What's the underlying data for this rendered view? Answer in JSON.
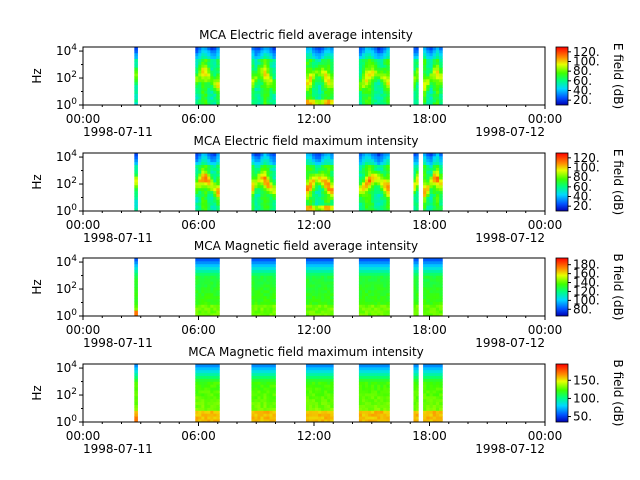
{
  "chart_data": [
    {
      "type": "heatmap",
      "title": "MCA  Electric field average intensity",
      "ylabel": "Hz",
      "colorbar_label": "E field (dB)",
      "colorbar_ticks": [
        "20.",
        "40.",
        "60.",
        "80.",
        "100.",
        "120."
      ],
      "colorbar_range": [
        10,
        130
      ],
      "y_scale": "log",
      "yticks": [
        "10^0",
        "10^2",
        "10^4"
      ],
      "xticks": [
        "00:00",
        "06:00",
        "12:00",
        "18:00",
        "00:00"
      ],
      "xdate_left": "1998-07-11",
      "xdate_right": "1998-07-12",
      "xlim": [
        "1998-07-11 00:00",
        "1998-07-12 00:00"
      ],
      "data_intervals": [
        [
          "02:40",
          "02:50"
        ],
        [
          "05:50",
          "07:05"
        ],
        [
          "08:45",
          "10:00"
        ],
        [
          "11:35",
          "13:00"
        ],
        [
          "14:20",
          "15:55"
        ],
        [
          "17:10",
          "17:25"
        ],
        [
          "17:40",
          "18:40"
        ]
      ],
      "colormap": "rainbow",
      "kind": "E",
      "mode": "avg"
    },
    {
      "type": "heatmap",
      "title": "MCA  Electric field maximum intensity",
      "ylabel": "Hz",
      "colorbar_label": "E field (dB)",
      "colorbar_ticks": [
        "20.",
        "40.",
        "60.",
        "80.",
        "100.",
        "120."
      ],
      "colorbar_range": [
        10,
        130
      ],
      "y_scale": "log",
      "yticks": [
        "10^0",
        "10^2",
        "10^4"
      ],
      "xticks": [
        "00:00",
        "06:00",
        "12:00",
        "18:00",
        "00:00"
      ],
      "xdate_left": "1998-07-11",
      "xdate_right": "1998-07-12",
      "xlim": [
        "1998-07-11 00:00",
        "1998-07-12 00:00"
      ],
      "data_intervals": [
        [
          "02:40",
          "02:50"
        ],
        [
          "05:50",
          "07:05"
        ],
        [
          "08:45",
          "10:00"
        ],
        [
          "11:35",
          "13:00"
        ],
        [
          "14:20",
          "15:55"
        ],
        [
          "17:10",
          "17:25"
        ],
        [
          "17:40",
          "18:40"
        ]
      ],
      "colormap": "rainbow",
      "kind": "E",
      "mode": "max"
    },
    {
      "type": "heatmap",
      "title": "MCA  Magnetic field average intensity",
      "ylabel": "Hz",
      "colorbar_label": "B field (dB)",
      "colorbar_ticks": [
        "80.",
        "100.",
        "120.",
        "140.",
        "160.",
        "180."
      ],
      "colorbar_range": [
        65,
        195
      ],
      "y_scale": "log",
      "yticks": [
        "10^0",
        "10^2",
        "10^4"
      ],
      "xticks": [
        "00:00",
        "06:00",
        "12:00",
        "18:00",
        "00:00"
      ],
      "xdate_left": "1998-07-11",
      "xdate_right": "1998-07-12",
      "xlim": [
        "1998-07-11 00:00",
        "1998-07-12 00:00"
      ],
      "data_intervals": [
        [
          "02:40",
          "02:50"
        ],
        [
          "05:50",
          "07:05"
        ],
        [
          "08:45",
          "10:00"
        ],
        [
          "11:35",
          "13:00"
        ],
        [
          "14:20",
          "15:55"
        ],
        [
          "17:10",
          "17:25"
        ],
        [
          "17:40",
          "18:40"
        ]
      ],
      "colormap": "rainbow",
      "kind": "B",
      "mode": "avg"
    },
    {
      "type": "heatmap",
      "title": "MCA  Magnetic field maximum intensity",
      "ylabel": "Hz",
      "colorbar_label": "B field (dB)",
      "colorbar_ticks": [
        "50.",
        "100.",
        "150."
      ],
      "colorbar_range": [
        35,
        195
      ],
      "y_scale": "log",
      "yticks": [
        "10^0",
        "10^2",
        "10^4"
      ],
      "xticks": [
        "00:00",
        "06:00",
        "12:00",
        "18:00",
        "00:00"
      ],
      "xdate_left": "1998-07-11",
      "xdate_right": "1998-07-12",
      "xlim": [
        "1998-07-11 00:00",
        "1998-07-12 00:00"
      ],
      "data_intervals": [
        [
          "02:40",
          "02:50"
        ],
        [
          "05:50",
          "07:05"
        ],
        [
          "08:45",
          "10:00"
        ],
        [
          "11:35",
          "13:00"
        ],
        [
          "14:20",
          "15:55"
        ],
        [
          "17:10",
          "17:25"
        ],
        [
          "17:40",
          "18:40"
        ]
      ],
      "colormap": "rainbow",
      "kind": "B",
      "mode": "max"
    }
  ]
}
